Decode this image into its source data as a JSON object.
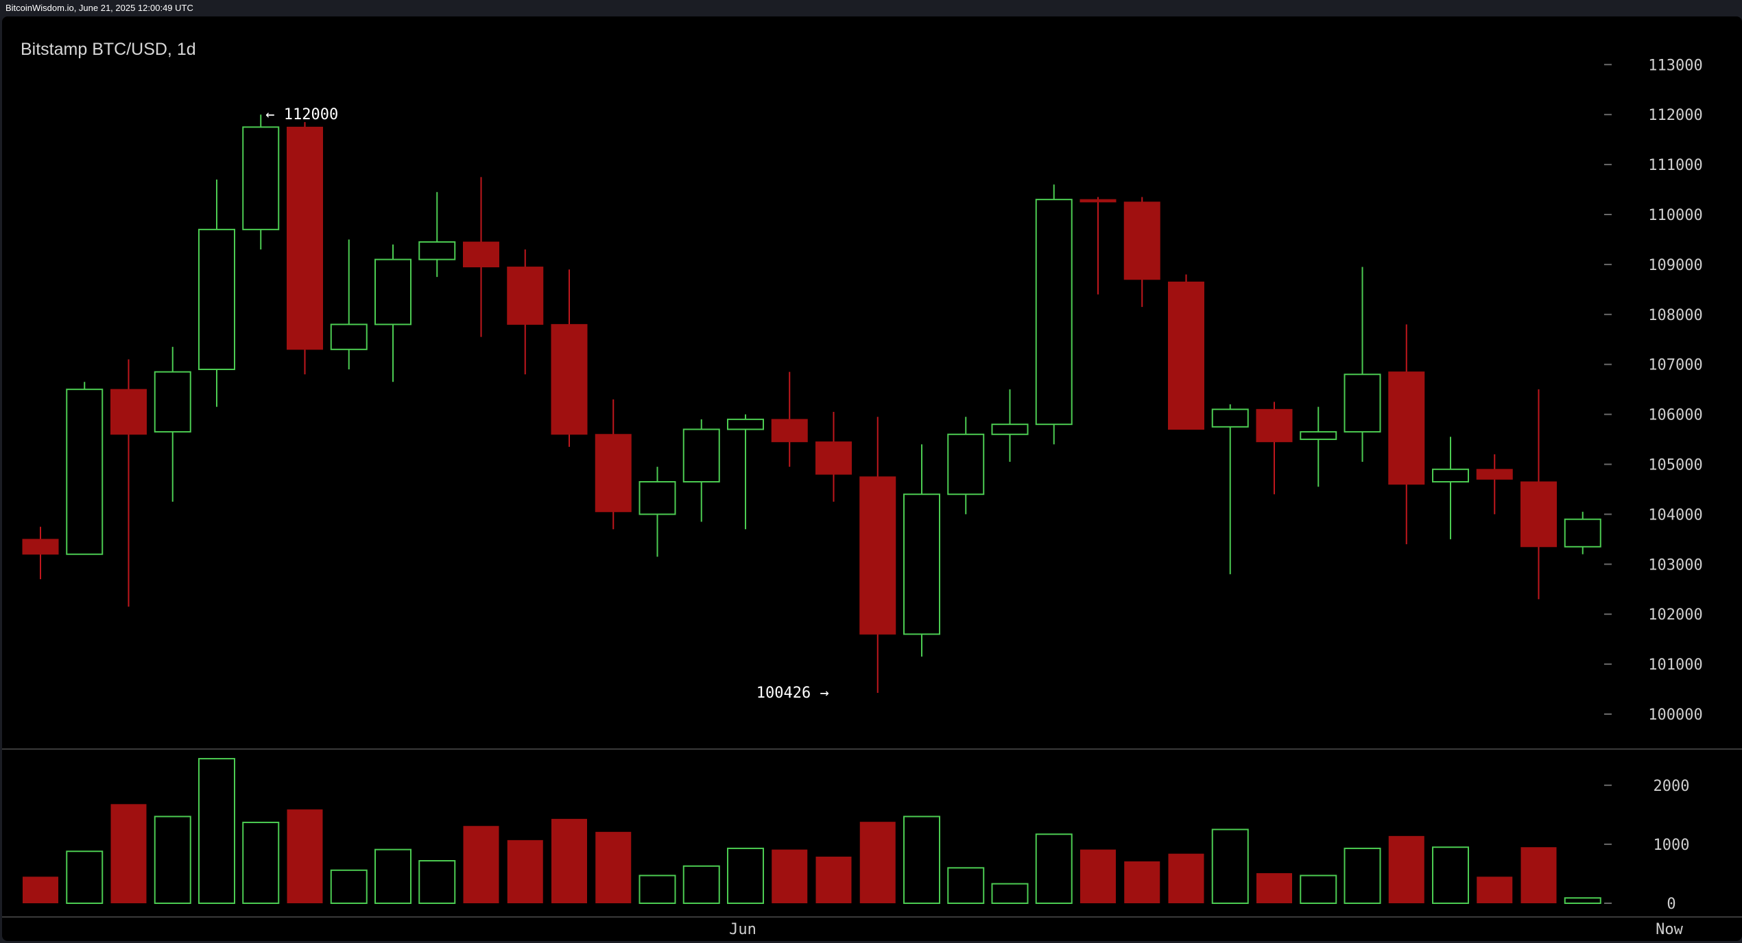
{
  "header": {
    "source_text": "BitcoinWisdom.io, June 21, 2025 12:00:49 UTC"
  },
  "colors": {
    "up": "#4ccc52",
    "down": "#a01010",
    "background": "#000000",
    "axis_text": "#cfcfcf",
    "separator": "#3a3a3a"
  },
  "chart_data": {
    "type": "candlestick",
    "title": "Bitstamp BTC/USD, 1d",
    "x_labels": [
      "Jun",
      "Now"
    ],
    "price_axis": {
      "ticks": [
        100000,
        101000,
        102000,
        103000,
        104000,
        105000,
        106000,
        107000,
        108000,
        109000,
        110000,
        111000,
        112000,
        113000
      ],
      "range": [
        99000,
        113500
      ]
    },
    "volume_axis": {
      "ticks": [
        0,
        1000,
        2000
      ]
    },
    "annotations": [
      {
        "text": "← 112000",
        "price": 112000,
        "candle_index": 5,
        "side": "right"
      },
      {
        "text": "100426 →",
        "price": 100426,
        "candle_index": 19,
        "side": "left"
      }
    ],
    "candles": [
      {
        "o": 103500,
        "h": 103750,
        "l": 102700,
        "c": 103200,
        "v": 450
      },
      {
        "o": 103200,
        "h": 106650,
        "l": 103200,
        "c": 106500,
        "v": 880
      },
      {
        "o": 106500,
        "h": 107100,
        "l": 102150,
        "c": 105600,
        "v": 1680
      },
      {
        "o": 105650,
        "h": 107350,
        "l": 104250,
        "c": 106850,
        "v": 1470
      },
      {
        "o": 106900,
        "h": 110700,
        "l": 106150,
        "c": 109700,
        "v": 2450
      },
      {
        "o": 109700,
        "h": 112000,
        "l": 109300,
        "c": 111750,
        "v": 1370
      },
      {
        "o": 111750,
        "h": 111850,
        "l": 106800,
        "c": 107300,
        "v": 1590
      },
      {
        "o": 107300,
        "h": 109500,
        "l": 106900,
        "c": 107800,
        "v": 560
      },
      {
        "o": 107800,
        "h": 109400,
        "l": 106650,
        "c": 109100,
        "v": 910
      },
      {
        "o": 109100,
        "h": 110450,
        "l": 108750,
        "c": 109450,
        "v": 720
      },
      {
        "o": 109450,
        "h": 110750,
        "l": 107550,
        "c": 108950,
        "v": 1310
      },
      {
        "o": 108950,
        "h": 109300,
        "l": 106800,
        "c": 107800,
        "v": 1070
      },
      {
        "o": 107800,
        "h": 108900,
        "l": 105350,
        "c": 105600,
        "v": 1430
      },
      {
        "o": 105600,
        "h": 106300,
        "l": 103700,
        "c": 104050,
        "v": 1210
      },
      {
        "o": 104000,
        "h": 104950,
        "l": 103150,
        "c": 104650,
        "v": 470
      },
      {
        "o": 104650,
        "h": 105900,
        "l": 103850,
        "c": 105700,
        "v": 630
      },
      {
        "o": 105700,
        "h": 106000,
        "l": 103700,
        "c": 105900,
        "v": 930
      },
      {
        "o": 105900,
        "h": 106850,
        "l": 104950,
        "c": 105450,
        "v": 910
      },
      {
        "o": 105450,
        "h": 106050,
        "l": 104250,
        "c": 104800,
        "v": 790
      },
      {
        "o": 104750,
        "h": 105950,
        "l": 100426,
        "c": 101600,
        "v": 1380
      },
      {
        "o": 101600,
        "h": 105400,
        "l": 101150,
        "c": 104400,
        "v": 1470
      },
      {
        "o": 104400,
        "h": 105950,
        "l": 104000,
        "c": 105600,
        "v": 600
      },
      {
        "o": 105600,
        "h": 106500,
        "l": 105050,
        "c": 105800,
        "v": 330
      },
      {
        "o": 105800,
        "h": 110600,
        "l": 105400,
        "c": 110300,
        "v": 1170
      },
      {
        "o": 110300,
        "h": 110350,
        "l": 108400,
        "c": 110250,
        "v": 910
      },
      {
        "o": 110250,
        "h": 110350,
        "l": 108150,
        "c": 108700,
        "v": 710
      },
      {
        "o": 108650,
        "h": 108800,
        "l": 105700,
        "c": 105700,
        "v": 840
      },
      {
        "o": 105750,
        "h": 106200,
        "l": 102800,
        "c": 106100,
        "v": 1250
      },
      {
        "o": 106100,
        "h": 106250,
        "l": 104400,
        "c": 105450,
        "v": 510
      },
      {
        "o": 105500,
        "h": 106150,
        "l": 104550,
        "c": 105650,
        "v": 470
      },
      {
        "o": 105650,
        "h": 108950,
        "l": 105050,
        "c": 106800,
        "v": 930
      },
      {
        "o": 106850,
        "h": 107800,
        "l": 103400,
        "c": 104600,
        "v": 1140
      },
      {
        "o": 104650,
        "h": 105550,
        "l": 103500,
        "c": 104900,
        "v": 950
      },
      {
        "o": 104900,
        "h": 105200,
        "l": 104000,
        "c": 104700,
        "v": 450
      },
      {
        "o": 104650,
        "h": 106500,
        "l": 102300,
        "c": 103350,
        "v": 950
      },
      {
        "o": 103350,
        "h": 104050,
        "l": 103200,
        "c": 103900,
        "v": 90
      }
    ]
  }
}
